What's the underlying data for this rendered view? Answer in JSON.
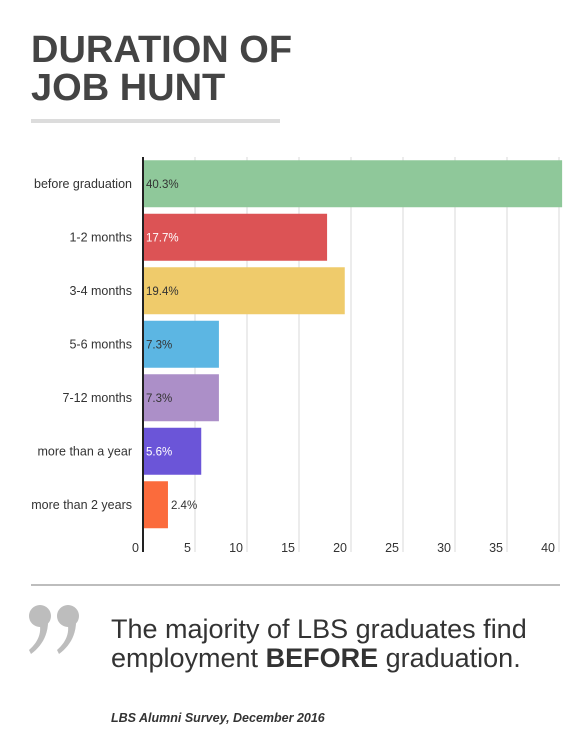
{
  "title": {
    "line1": "DURATION OF",
    "line2": "JOB HUNT"
  },
  "chart_data": {
    "type": "bar",
    "orientation": "horizontal",
    "categories": [
      "before graduation",
      "1-2 months",
      "3-4 months",
      "5-6 months",
      "7-12 months",
      "more than a year",
      "more than 2 years"
    ],
    "values": [
      40.3,
      17.7,
      19.4,
      7.3,
      7.3,
      5.6,
      2.4
    ],
    "value_labels": [
      "40.3%",
      "17.7%",
      "19.4%",
      "7.3%",
      "7.3%",
      "5.6%",
      "2.4%"
    ],
    "colors": [
      "#8fc89a",
      "#dc5355",
      "#efcb6b",
      "#5cb6e3",
      "#ac8fc8",
      "#6b55d8",
      "#fb6b3c"
    ],
    "label_colors": [
      "#333333",
      "#ffffff",
      "#333333",
      "#333333",
      "#333333",
      "#ffffff",
      "#333333"
    ],
    "xticks": [
      0,
      5,
      10,
      15,
      20,
      25,
      30,
      35,
      40
    ],
    "xlim": [
      0,
      40
    ],
    "grid": true
  },
  "quote": {
    "text_start": "The majority of LBS graduates find employment ",
    "text_bold": "BEFORE",
    "text_end": " graduation.",
    "source": "LBS Alumni Survey, December 2016"
  }
}
